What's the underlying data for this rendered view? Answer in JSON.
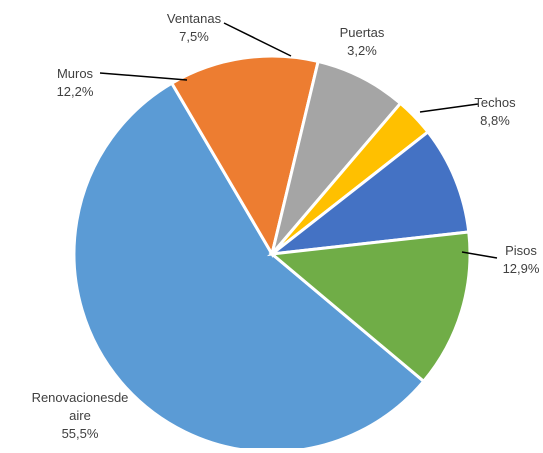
{
  "chart_data": {
    "type": "pie",
    "title": "",
    "start_angle_deg": 130,
    "direction": "clockwise",
    "slices": [
      {
        "key": "renovaciones",
        "label_lines": [
          "Renovacionesde",
          "aire"
        ],
        "value_text": "55,5%",
        "value": 55.5,
        "color": "#5b9bd5"
      },
      {
        "key": "muros",
        "label_lines": [
          "Muros"
        ],
        "value_text": "12,2%",
        "value": 12.2,
        "color": "#ed7d31"
      },
      {
        "key": "ventanas",
        "label_lines": [
          "Ventanas"
        ],
        "value_text": "7,5%",
        "value": 7.5,
        "color": "#a5a5a5"
      },
      {
        "key": "puertas",
        "label_lines": [
          "Puertas"
        ],
        "value_text": "3,2%",
        "value": 3.2,
        "color": "#ffc000"
      },
      {
        "key": "techos",
        "label_lines": [
          "Techos"
        ],
        "value_text": "8,8%",
        "value": 8.8,
        "color": "#4472c4"
      },
      {
        "key": "pisos",
        "label_lines": [
          "Pisos"
        ],
        "value_text": "12,9%",
        "value": 12.9,
        "color": "#70ad47"
      }
    ]
  }
}
